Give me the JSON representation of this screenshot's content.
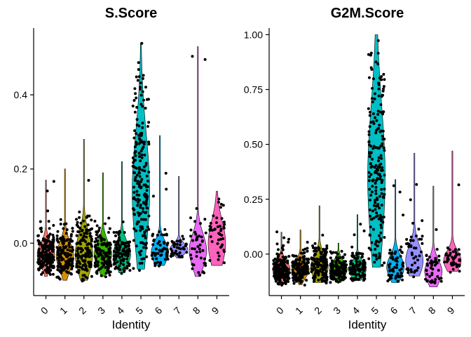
{
  "chart_data": [
    {
      "type": "violin",
      "title": "S.Score",
      "xlabel": "Identity",
      "ylabel": "",
      "categories": [
        "0",
        "1",
        "2",
        "3",
        "4",
        "5",
        "6",
        "7",
        "8",
        "9"
      ],
      "colors": [
        "#F8766D",
        "#D89000",
        "#A3A500",
        "#39B600",
        "#00BF7D",
        "#00BFC4",
        "#00B0F6",
        "#9590FF",
        "#E76BF3",
        "#FF62BC"
      ],
      "ylim": [
        -0.13,
        0.58
      ],
      "yticks": [
        0.0,
        0.2,
        0.4
      ],
      "ytick_labels": [
        "0.0",
        "0.2",
        "0.4"
      ],
      "series": [
        {
          "name": "0",
          "min": -0.09,
          "q1": -0.05,
          "median": -0.03,
          "q3": -0.01,
          "max": 0.17,
          "n": 200
        },
        {
          "name": "1",
          "min": -0.1,
          "q1": -0.06,
          "median": -0.035,
          "q3": -0.01,
          "max": 0.2,
          "n": 150
        },
        {
          "name": "2",
          "min": -0.1,
          "q1": -0.06,
          "median": -0.03,
          "q3": 0.01,
          "max": 0.28,
          "n": 140
        },
        {
          "name": "3",
          "min": -0.09,
          "q1": -0.05,
          "median": -0.03,
          "q3": -0.005,
          "max": 0.19,
          "n": 140
        },
        {
          "name": "4",
          "min": -0.08,
          "q1": -0.05,
          "median": -0.03,
          "q3": -0.005,
          "max": 0.22,
          "n": 110
        },
        {
          "name": "5",
          "min": -0.07,
          "q1": 0.06,
          "median": 0.14,
          "q3": 0.27,
          "max": 0.54,
          "n": 200
        },
        {
          "name": "6",
          "min": -0.06,
          "q1": -0.04,
          "median": -0.025,
          "q3": 0.0,
          "max": 0.29,
          "n": 60
        },
        {
          "name": "7",
          "min": -0.04,
          "q1": -0.025,
          "median": -0.015,
          "q3": -0.005,
          "max": 0.18,
          "n": 45
        },
        {
          "name": "8",
          "min": -0.09,
          "q1": -0.05,
          "median": -0.02,
          "q3": 0.01,
          "max": 0.53,
          "n": 45
        },
        {
          "name": "9",
          "min": -0.06,
          "q1": -0.03,
          "median": 0.0,
          "q3": 0.05,
          "max": 0.14,
          "n": 45
        }
      ]
    },
    {
      "type": "violin",
      "title": "G2M.Score",
      "xlabel": "Identity",
      "ylabel": "",
      "categories": [
        "0",
        "1",
        "2",
        "3",
        "4",
        "5",
        "6",
        "7",
        "8",
        "9"
      ],
      "colors": [
        "#F8766D",
        "#D89000",
        "#A3A500",
        "#39B600",
        "#00BF7D",
        "#00BFC4",
        "#00B0F6",
        "#9590FF",
        "#E76BF3",
        "#FF62BC"
      ],
      "ylim": [
        -0.17,
        1.03
      ],
      "yticks": [
        0.0,
        0.25,
        0.5,
        0.75,
        1.0
      ],
      "ytick_labels": [
        "0.00",
        "0.25",
        "0.50",
        "0.75",
        "1.00"
      ],
      "series": [
        {
          "name": "0",
          "min": -0.14,
          "q1": -0.09,
          "median": -0.07,
          "q3": -0.04,
          "max": 0.1,
          "n": 200
        },
        {
          "name": "1",
          "min": -0.14,
          "q1": -0.09,
          "median": -0.07,
          "q3": -0.04,
          "max": 0.11,
          "n": 150
        },
        {
          "name": "2",
          "min": -0.13,
          "q1": -0.09,
          "median": -0.06,
          "q3": -0.02,
          "max": 0.22,
          "n": 140
        },
        {
          "name": "3",
          "min": -0.13,
          "q1": -0.09,
          "median": -0.07,
          "q3": -0.04,
          "max": 0.05,
          "n": 140
        },
        {
          "name": "4",
          "min": -0.12,
          "q1": -0.09,
          "median": -0.07,
          "q3": -0.04,
          "max": 0.18,
          "n": 110
        },
        {
          "name": "5",
          "min": -0.06,
          "q1": 0.18,
          "median": 0.35,
          "q3": 0.62,
          "max": 1.0,
          "n": 200
        },
        {
          "name": "6",
          "min": -0.13,
          "q1": -0.09,
          "median": -0.06,
          "q3": -0.02,
          "max": 0.34,
          "n": 60
        },
        {
          "name": "7",
          "min": -0.1,
          "q1": -0.07,
          "median": -0.03,
          "q3": 0.02,
          "max": 0.46,
          "n": 45
        },
        {
          "name": "8",
          "min": -0.15,
          "q1": -0.11,
          "median": -0.08,
          "q3": -0.04,
          "max": 0.31,
          "n": 45
        },
        {
          "name": "9",
          "min": -0.08,
          "q1": -0.06,
          "median": -0.03,
          "q3": 0.0,
          "max": 0.47,
          "n": 45
        }
      ]
    }
  ]
}
